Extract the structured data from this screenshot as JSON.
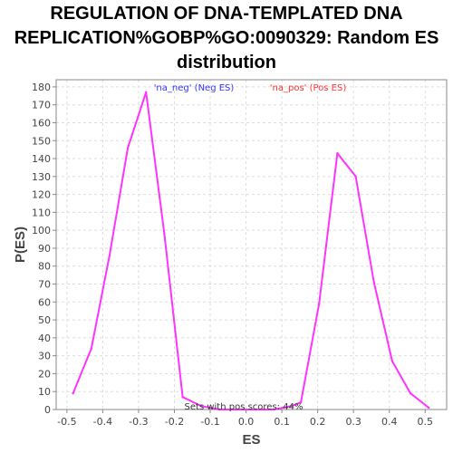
{
  "chart_data": {
    "type": "line",
    "title_lines": [
      "REGULATION OF DNA-TEMPLATED DNA",
      "REPLICATION%GOBP%GO:0090329: Random ES",
      "distribution"
    ],
    "xlabel": "ES",
    "ylabel": "P(ES)",
    "xlim": [
      -0.53,
      0.56
    ],
    "ylim": [
      0,
      184
    ],
    "x_ticks": [
      "-0.5",
      "-0.4",
      "-0.3",
      "-0.2",
      "-0.1",
      "0.0",
      "0.1",
      "0.2",
      "0.3",
      "0.4",
      "0.5"
    ],
    "y_ticks": [
      "0",
      "10",
      "20",
      "30",
      "40",
      "50",
      "60",
      "70",
      "80",
      "90",
      "100",
      "110",
      "120",
      "130",
      "140",
      "150",
      "160",
      "170",
      "180"
    ],
    "grid": true,
    "legend": [
      {
        "label": "'na_neg' (Neg ES)",
        "color": "#3333ff"
      },
      {
        "label": "'na_pos' (Pos ES)",
        "color": "#ff3333"
      }
    ],
    "annotation": "Sets with pos scores: 44%",
    "series": [
      {
        "color": "#ff33ff",
        "points": [
          [
            -0.483,
            9
          ],
          [
            -0.432,
            34
          ],
          [
            -0.381,
            86
          ],
          [
            -0.33,
            146
          ],
          [
            -0.279,
            177
          ],
          [
            -0.228,
            98
          ],
          [
            -0.177,
            7
          ],
          [
            -0.126,
            2
          ],
          [
            -0.075,
            0
          ],
          [
            -0.024,
            0
          ],
          [
            0.027,
            0
          ],
          [
            0.078,
            0
          ],
          [
            0.129,
            2
          ],
          [
            0.153,
            4
          ],
          [
            0.204,
            59
          ],
          [
            0.255,
            143
          ],
          [
            0.306,
            130
          ],
          [
            0.357,
            71
          ],
          [
            0.408,
            27
          ],
          [
            0.459,
            9
          ],
          [
            0.51,
            1
          ]
        ]
      }
    ],
    "colors": {
      "plot_border": "#888888",
      "grid": "#dddddd",
      "background": "#ffffff"
    }
  }
}
